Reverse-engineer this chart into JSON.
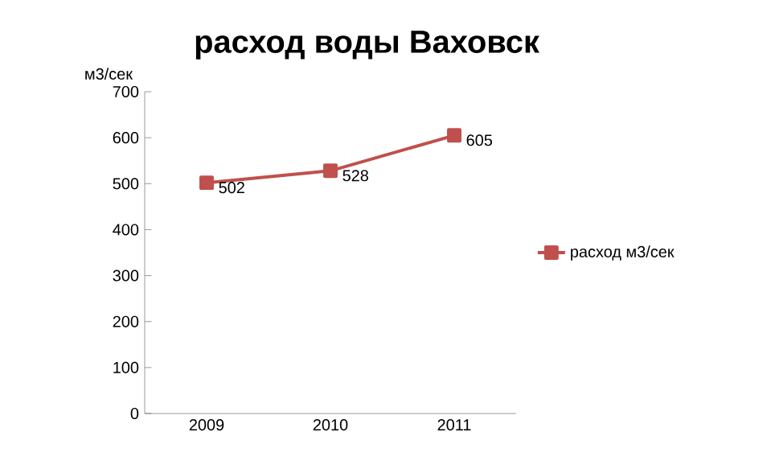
{
  "chart_data": {
    "type": "line",
    "title": "расход воды Ваховск",
    "ylabel": "м3/сек",
    "categories": [
      "2009",
      "2010",
      "2011"
    ],
    "series": [
      {
        "name": "расход м3/сек",
        "color": "#c0504d",
        "values": [
          502,
          528,
          605
        ]
      }
    ],
    "ylim": [
      0,
      700
    ],
    "yticks": [
      0,
      100,
      200,
      300,
      400,
      500,
      600,
      700
    ],
    "marker": "square",
    "legend": "right",
    "data_labels": true,
    "grid": false
  }
}
